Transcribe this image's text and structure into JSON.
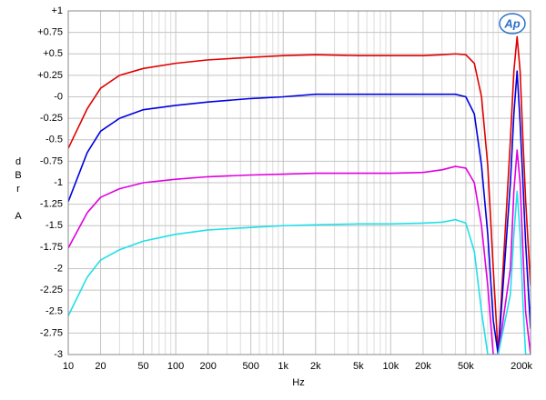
{
  "chart_data": {
    "type": "line",
    "xlabel": "Hz",
    "ylabel": "dBr A",
    "logo": "Ap",
    "xscale": "log",
    "grid": true,
    "x": [
      10,
      15,
      20,
      30,
      50,
      100,
      200,
      500,
      1000,
      2000,
      5000,
      10000,
      20000,
      30000,
      40000,
      50000,
      60000,
      70000,
      80000,
      90000,
      100000,
      130000,
      140000,
      150000,
      160000,
      170000,
      180000,
      200000
    ],
    "series": [
      {
        "color": "#e00000",
        "values": [
          -0.6,
          -0.14,
          0.1,
          0.25,
          0.33,
          0.39,
          0.43,
          0.46,
          0.48,
          0.49,
          0.48,
          0.48,
          0.48,
          0.49,
          0.5,
          0.49,
          0.39,
          0.0,
          -0.8,
          -2.0,
          -3,
          -0.5,
          0.3,
          0.7,
          0.3,
          -0.5,
          -1.2,
          -2.2
        ]
      },
      {
        "color": "#0000e0",
        "values": [
          -1.22,
          -0.65,
          -0.4,
          -0.25,
          -0.15,
          -0.1,
          -0.06,
          -0.02,
          0.0,
          0.03,
          0.03,
          0.03,
          0.03,
          0.03,
          0.03,
          0.0,
          -0.2,
          -0.8,
          -1.6,
          -2.6,
          -3,
          -1.0,
          -0.2,
          0.3,
          -0.3,
          -1.0,
          -1.7,
          -2.7
        ]
      },
      {
        "color": "#e000e0",
        "values": [
          -1.76,
          -1.35,
          -1.17,
          -1.07,
          -1.0,
          -0.96,
          -0.93,
          -0.91,
          -0.9,
          -0.89,
          -0.89,
          -0.89,
          -0.88,
          -0.85,
          -0.81,
          -0.83,
          -1.0,
          -1.5,
          -2.2,
          -3,
          -3,
          -2,
          -1.1,
          -0.62,
          -1.0,
          -1.8,
          -2.5,
          -3
        ]
      },
      {
        "color": "#20e0e8",
        "values": [
          -2.55,
          -2.1,
          -1.9,
          -1.78,
          -1.68,
          -1.6,
          -1.55,
          -1.52,
          -1.5,
          -1.49,
          -1.48,
          -1.48,
          -1.47,
          -1.46,
          -1.43,
          -1.47,
          -1.8,
          -2.5,
          -3,
          -3,
          -3,
          -2.3,
          -1.6,
          -1.1,
          -1.6,
          -2.4,
          -3,
          -3
        ]
      }
    ],
    "xlim": [
      10,
      200000
    ],
    "xticks": [
      10,
      20,
      50,
      100,
      200,
      500,
      {
        "value": 1000,
        "label": "1k"
      },
      {
        "value": 2000,
        "label": "2k"
      },
      {
        "value": 5000,
        "label": "5k"
      },
      {
        "value": 10000,
        "label": "10k"
      },
      {
        "value": 20000,
        "label": "20k"
      },
      {
        "value": 50000,
        "label": "50k"
      },
      {
        "value": 200000,
        "label": "200k"
      }
    ],
    "xminorticks": [
      30,
      40,
      60,
      70,
      80,
      90,
      300,
      400,
      600,
      700,
      800,
      900,
      3000,
      4000,
      6000,
      7000,
      8000,
      9000,
      30000,
      40000,
      60000,
      70000,
      80000,
      90000,
      100000
    ],
    "ylim": [
      -3,
      1
    ],
    "yticks": [
      {
        "value": 1,
        "label": "+1"
      },
      {
        "value": 0.75,
        "label": "+0.75"
      },
      {
        "value": 0.5,
        "label": "+0.5"
      },
      {
        "value": 0.25,
        "label": "+0.25"
      },
      {
        "value": 0,
        "label": "-0"
      },
      -0.25,
      -0.5,
      -0.75,
      -1,
      -1.25,
      -1.5,
      -1.75,
      -2,
      -2.25,
      -2.5,
      -2.75,
      -3
    ]
  }
}
